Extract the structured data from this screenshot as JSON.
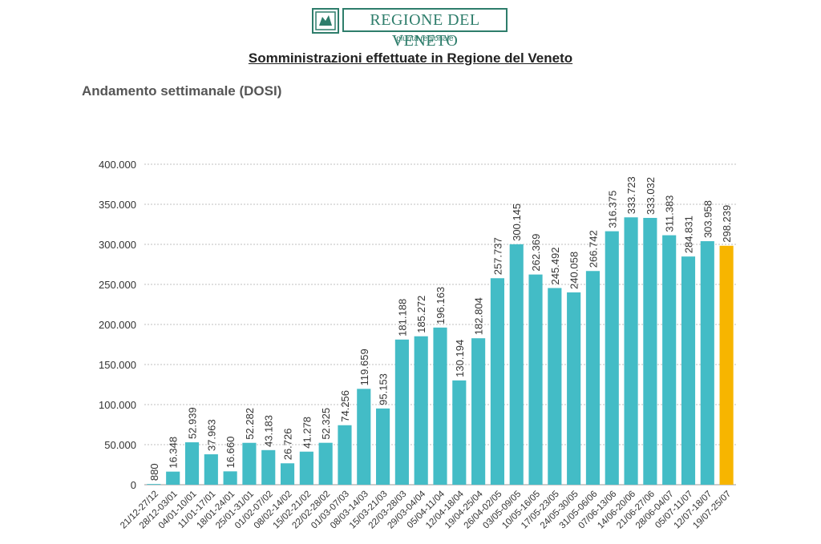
{
  "header": {
    "logo_text": "REGIONE DEL VENETO",
    "logo_subtext": "giunta regionale",
    "title": "Somministrazioni effettuate in  Regione del Veneto",
    "subtitle": "Andamento settimanale (DOSI)"
  },
  "colors": {
    "bar": "#43BCC6",
    "highlight_bar": "#F7B500",
    "brand": "#2E7D6B",
    "grid": "#BFBFBF"
  },
  "chart_data": {
    "type": "bar",
    "title": "Somministrazioni effettuate in  Regione del Veneto",
    "subtitle": "Andamento settimanale (DOSI)",
    "xlabel": "",
    "ylabel": "",
    "ylim": [
      0,
      400000
    ],
    "yticks": [
      0,
      50000,
      100000,
      150000,
      200000,
      250000,
      300000,
      350000,
      400000
    ],
    "ytick_labels": [
      "0",
      "50.000",
      "100.000",
      "150.000",
      "200.000",
      "250.000",
      "300.000",
      "350.000",
      "400.000"
    ],
    "grid": true,
    "categories": [
      "21/12-27/12",
      "28/12-03/01",
      "04/01-10/01",
      "11/01-17/01",
      "18/01-24/01",
      "25/01-31/01",
      "01/02-07/02",
      "08/02-14/02",
      "15/02-21/02",
      "22/02-28/02",
      "01/03-07/03",
      "08/03-14/03",
      "15/03-21/03",
      "22/03-28/03",
      "29/03-04/04",
      "05/04-11/04",
      "12/04-18/04",
      "19/04-25/04",
      "26/04-02/05",
      "03/05-09/05",
      "10/05-16/05",
      "17/05-23/05",
      "24/05-30/05",
      "31/05-06/06",
      "07/06-13/06",
      "14/06-20/06",
      "21/06-27/06",
      "28/06-04/07",
      "05/07-11/07",
      "12/07-18/07",
      "19/07-25/07"
    ],
    "values": [
      880,
      16348,
      52939,
      37963,
      16660,
      52282,
      43183,
      26726,
      41278,
      52325,
      74256,
      119659,
      95153,
      181188,
      185272,
      196163,
      130194,
      182804,
      257737,
      300145,
      262369,
      245492,
      240058,
      266742,
      316375,
      333723,
      333032,
      311383,
      284831,
      303958,
      298239
    ],
    "value_labels": [
      "880",
      "16.348",
      "52.939",
      "37.963",
      "16.660",
      "52.282",
      "43.183",
      "26.726",
      "41.278",
      "52.325",
      "74.256",
      "119.659",
      "95.153",
      "181.188",
      "185.272",
      "196.163",
      "130.194",
      "182.804",
      "257.737",
      "300.145",
      "262.369",
      "245.492",
      "240.058",
      "266.742",
      "316.375",
      "333.723",
      "333.032",
      "311.383",
      "284.831",
      "303.958",
      "298.239"
    ],
    "highlight_index": 30
  }
}
